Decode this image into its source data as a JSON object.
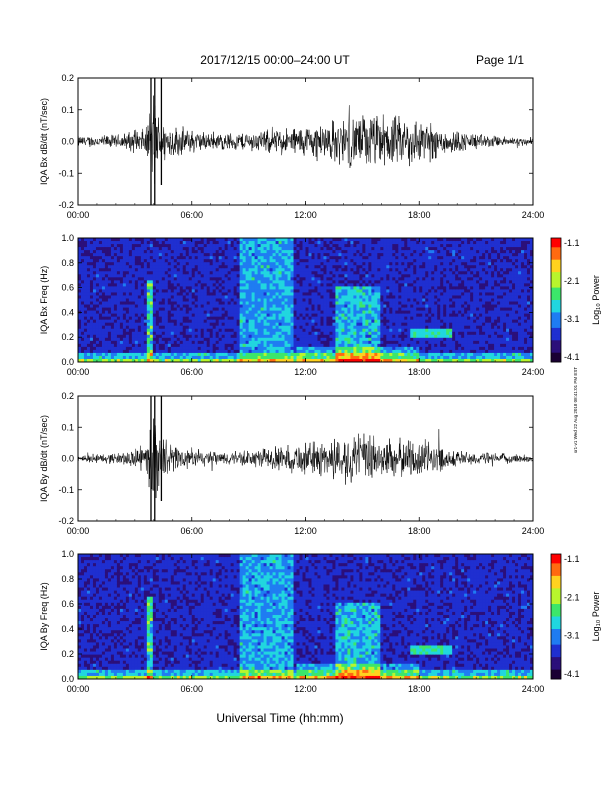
{
  "header": {
    "date_label": "2017/12/15   00:00–24:00 UT",
    "page_label": "Page 1/1"
  },
  "x_axis_label": "Universal Time (hh:mm)",
  "side_stamp": "sr1-v1 Wed 22 Aug 2018 08:41:01 PM EST",
  "colors": {
    "trace": "#000000",
    "colormap": [
      "#1a0033",
      "#2b0f7a",
      "#1f2fd0",
      "#1f7cf2",
      "#21d6df",
      "#3ce66a",
      "#b8f52d",
      "#ffd21f",
      "#ff6a10",
      "#ff0000"
    ]
  },
  "chart_data": [
    {
      "type": "line",
      "ylabel": "IQA Bx dB/dt (nT/sec)",
      "ylim": [
        -0.2,
        0.2
      ],
      "yticks": [
        "0.2",
        "0.1",
        "0.0",
        "-0.1",
        "-0.2"
      ],
      "xticks": [
        "00:00",
        "06:00",
        "12:00",
        "18:00",
        "24:00"
      ],
      "xlim_hours": [
        0,
        24
      ],
      "envelope_hours": [
        0,
        2,
        3.6,
        4.0,
        4.3,
        5,
        7,
        9,
        11,
        12,
        13,
        14,
        15,
        16,
        17,
        18,
        19,
        20,
        21,
        22,
        24
      ],
      "envelope_amplitude": [
        0.02,
        0.025,
        0.05,
        0.2,
        0.08,
        0.06,
        0.03,
        0.035,
        0.05,
        0.06,
        0.07,
        0.09,
        0.1,
        0.1,
        0.09,
        0.09,
        0.06,
        0.04,
        0.03,
        0.02,
        0.015
      ]
    },
    {
      "type": "heatmap",
      "ylabel": "IQA Bx Freq (Hz)",
      "ylim": [
        0,
        1.0
      ],
      "yticks": [
        "1.0",
        "0.8",
        "0.6",
        "0.4",
        "0.2",
        "0.0"
      ],
      "xticks": [
        "00:00",
        "06:00",
        "12:00",
        "18:00",
        "24:00"
      ],
      "colorbar": {
        "label": "Log₁₀ Power",
        "min": -4.1,
        "max": -1.1,
        "ticks": [
          "-1.1",
          "-2.1",
          "-3.1",
          "-4.1"
        ]
      }
    },
    {
      "type": "line",
      "ylabel": "IQA By dB/dt (nT/sec)",
      "ylim": [
        -0.2,
        0.2
      ],
      "yticks": [
        "0.2",
        "0.1",
        "0.0",
        "-0.1",
        "-0.2"
      ],
      "xticks": [
        "00:00",
        "06:00",
        "12:00",
        "18:00",
        "24:00"
      ],
      "xlim_hours": [
        0,
        24
      ],
      "envelope_hours": [
        0,
        2,
        3.6,
        4.0,
        4.3,
        5,
        7,
        9,
        11,
        12,
        13,
        14,
        15,
        16,
        17,
        18,
        19,
        20,
        21,
        22,
        24
      ],
      "envelope_amplitude": [
        0.015,
        0.02,
        0.05,
        0.2,
        0.09,
        0.05,
        0.025,
        0.03,
        0.05,
        0.06,
        0.07,
        0.09,
        0.1,
        0.08,
        0.07,
        0.08,
        0.05,
        0.03,
        0.025,
        0.02,
        0.015
      ]
    },
    {
      "type": "heatmap",
      "ylabel": "IQA By Freq (Hz)",
      "ylim": [
        0,
        1.0
      ],
      "yticks": [
        "1.0",
        "0.8",
        "0.6",
        "0.4",
        "0.2",
        "0.0"
      ],
      "xticks": [
        "00:00",
        "06:00",
        "12:00",
        "18:00",
        "24:00"
      ],
      "colorbar": {
        "label": "Log₁₀ Power",
        "min": -4.1,
        "max": -1.1,
        "ticks": [
          "-1.1",
          "-2.1",
          "-3.1",
          "-4.1"
        ]
      }
    }
  ]
}
